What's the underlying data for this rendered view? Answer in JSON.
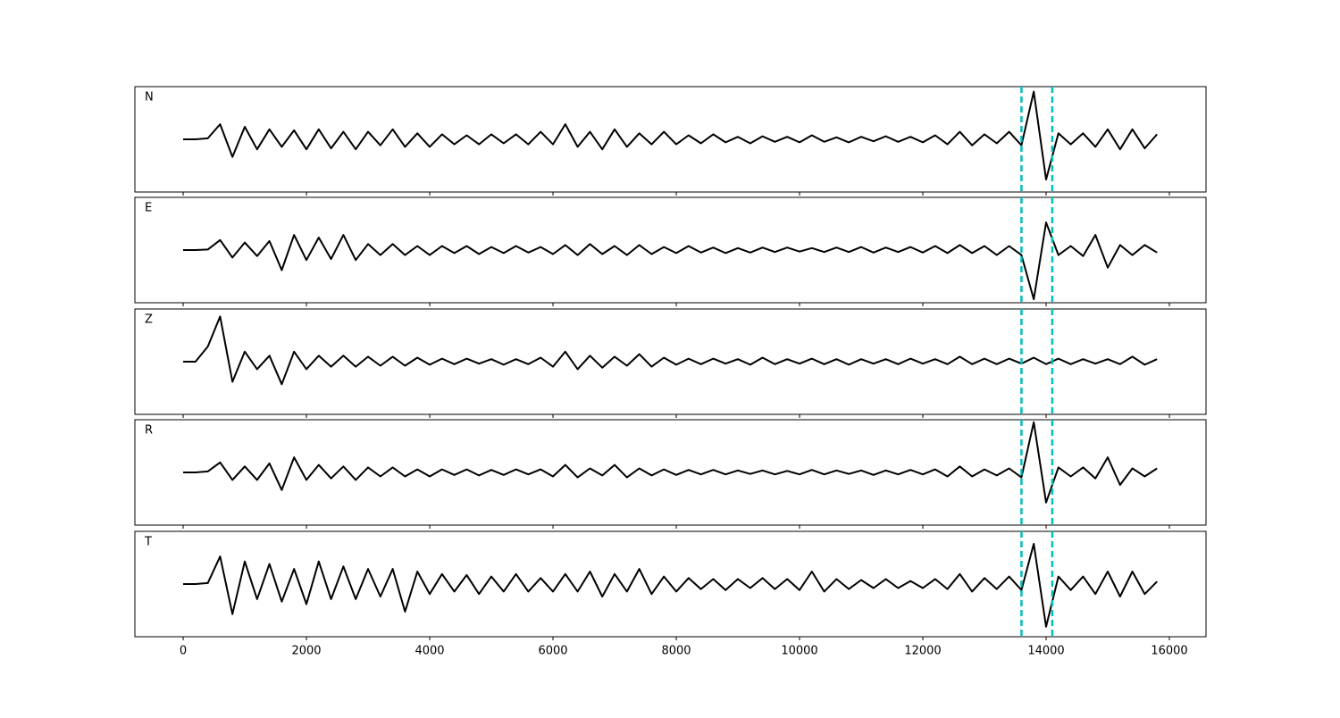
{
  "chart_data": {
    "type": "line",
    "subplots": true,
    "x": [
      0,
      200,
      400,
      600,
      800,
      1000,
      1200,
      1400,
      1600,
      1800,
      2000,
      2200,
      2400,
      2600,
      2800,
      3000,
      3200,
      3400,
      3600,
      3800,
      4000,
      4200,
      4400,
      4600,
      4800,
      5000,
      5200,
      5400,
      5600,
      5800,
      6000,
      6200,
      6400,
      6600,
      6800,
      7000,
      7200,
      7400,
      7600,
      7800,
      8000,
      8200,
      8400,
      8600,
      8800,
      9000,
      9200,
      9400,
      9600,
      9800,
      10000,
      10200,
      10400,
      10600,
      10800,
      11000,
      11200,
      11400,
      11600,
      11800,
      12000,
      12200,
      12400,
      12600,
      12800,
      13000,
      13200,
      13400,
      13600,
      13800,
      14000,
      14200,
      14400,
      14600,
      14800,
      15000,
      15200,
      15400,
      15600,
      15800
    ],
    "series": [
      {
        "name": "N",
        "color": "#000000",
        "values": [
          0,
          0,
          0.02,
          0.3,
          -0.35,
          0.25,
          -0.2,
          0.2,
          -0.15,
          0.18,
          -0.2,
          0.2,
          -0.18,
          0.15,
          -0.2,
          0.15,
          -0.12,
          0.2,
          -0.15,
          0.12,
          -0.15,
          0.1,
          -0.1,
          0.08,
          -0.1,
          0.1,
          -0.08,
          0.1,
          -0.1,
          0.15,
          -0.1,
          0.3,
          -0.15,
          0.15,
          -0.2,
          0.2,
          -0.15,
          0.12,
          -0.1,
          0.15,
          -0.1,
          0.08,
          -0.08,
          0.1,
          -0.06,
          0.05,
          -0.08,
          0.06,
          -0.05,
          0.05,
          -0.06,
          0.08,
          -0.05,
          0.04,
          -0.06,
          0.05,
          -0.04,
          0.06,
          -0.05,
          0.05,
          -0.06,
          0.08,
          -0.1,
          0.15,
          -0.12,
          0.1,
          -0.08,
          0.15,
          -0.12,
          0.95,
          -0.8,
          0.12,
          -0.1,
          0.12,
          -0.15,
          0.2,
          -0.2,
          0.2,
          -0.18,
          0.1
        ]
      },
      {
        "name": "E",
        "color": "#000000",
        "values": [
          0,
          0,
          0.01,
          0.2,
          -0.15,
          0.15,
          -0.12,
          0.18,
          -0.4,
          0.3,
          -0.2,
          0.25,
          -0.18,
          0.3,
          -0.2,
          0.12,
          -0.1,
          0.12,
          -0.1,
          0.08,
          -0.1,
          0.08,
          -0.06,
          0.08,
          -0.08,
          0.06,
          -0.06,
          0.08,
          -0.05,
          0.06,
          -0.08,
          0.1,
          -0.1,
          0.12,
          -0.08,
          0.08,
          -0.1,
          0.1,
          -0.08,
          0.06,
          -0.06,
          0.08,
          -0.05,
          0.05,
          -0.06,
          0.04,
          -0.05,
          0.05,
          -0.04,
          0.05,
          -0.03,
          0.04,
          -0.04,
          0.05,
          -0.04,
          0.06,
          -0.05,
          0.05,
          -0.04,
          0.06,
          -0.05,
          0.08,
          -0.06,
          0.1,
          -0.06,
          0.08,
          -0.1,
          0.08,
          -0.1,
          -0.98,
          0.55,
          -0.1,
          0.08,
          -0.12,
          0.3,
          -0.35,
          0.1,
          -0.1,
          0.1,
          -0.05
        ]
      },
      {
        "name": "Z",
        "color": "#000000",
        "values": [
          0,
          0,
          0.3,
          0.9,
          -0.4,
          0.2,
          -0.15,
          0.12,
          -0.45,
          0.2,
          -0.15,
          0.12,
          -0.1,
          0.12,
          -0.1,
          0.1,
          -0.08,
          0.1,
          -0.08,
          0.08,
          -0.06,
          0.06,
          -0.05,
          0.06,
          -0.04,
          0.05,
          -0.06,
          0.05,
          -0.05,
          0.08,
          -0.1,
          0.2,
          -0.15,
          0.12,
          -0.12,
          0.1,
          -0.08,
          0.15,
          -0.1,
          0.08,
          -0.06,
          0.06,
          -0.05,
          0.06,
          -0.04,
          0.05,
          -0.06,
          0.08,
          -0.05,
          0.05,
          -0.04,
          0.06,
          -0.05,
          0.05,
          -0.06,
          0.05,
          -0.04,
          0.05,
          -0.05,
          0.06,
          -0.04,
          0.05,
          -0.05,
          0.1,
          -0.05,
          0.06,
          -0.05,
          0.06,
          -0.04,
          0.08,
          -0.05,
          0.06,
          -0.05,
          0.05,
          -0.04,
          0.05,
          -0.05,
          0.1,
          -0.06,
          0.05
        ]
      },
      {
        "name": "R",
        "color": "#000000",
        "values": [
          0,
          0,
          0.02,
          0.2,
          -0.15,
          0.12,
          -0.15,
          0.18,
          -0.35,
          0.3,
          -0.15,
          0.15,
          -0.12,
          0.12,
          -0.15,
          0.1,
          -0.08,
          0.1,
          -0.08,
          0.06,
          -0.08,
          0.06,
          -0.05,
          0.06,
          -0.06,
          0.05,
          -0.05,
          0.06,
          -0.04,
          0.06,
          -0.08,
          0.15,
          -0.1,
          0.08,
          -0.06,
          0.15,
          -0.1,
          0.08,
          -0.06,
          0.06,
          -0.05,
          0.05,
          -0.04,
          0.05,
          -0.04,
          0.04,
          -0.03,
          0.04,
          -0.04,
          0.03,
          -0.04,
          0.05,
          -0.04,
          0.04,
          -0.03,
          0.04,
          -0.05,
          0.04,
          -0.04,
          0.05,
          -0.04,
          0.06,
          -0.08,
          0.12,
          -0.08,
          0.06,
          -0.06,
          0.08,
          -0.1,
          1.0,
          -0.6,
          0.1,
          -0.08,
          0.1,
          -0.12,
          0.3,
          -0.25,
          0.08,
          -0.08,
          0.08
        ]
      },
      {
        "name": "T",
        "color": "#000000",
        "values": [
          0,
          0,
          0.02,
          0.55,
          -0.6,
          0.45,
          -0.3,
          0.4,
          -0.35,
          0.3,
          -0.4,
          0.45,
          -0.3,
          0.35,
          -0.3,
          0.3,
          -0.25,
          0.3,
          -0.55,
          0.25,
          -0.2,
          0.2,
          -0.15,
          0.18,
          -0.2,
          0.15,
          -0.15,
          0.2,
          -0.15,
          0.12,
          -0.15,
          0.2,
          -0.15,
          0.25,
          -0.25,
          0.2,
          -0.15,
          0.3,
          -0.2,
          0.15,
          -0.15,
          0.12,
          -0.1,
          0.1,
          -0.12,
          0.1,
          -0.08,
          0.12,
          -0.1,
          0.1,
          -0.12,
          0.25,
          -0.15,
          0.1,
          -0.1,
          0.08,
          -0.08,
          0.1,
          -0.08,
          0.06,
          -0.08,
          0.1,
          -0.1,
          0.2,
          -0.15,
          0.12,
          -0.1,
          0.15,
          -0.12,
          0.8,
          -0.85,
          0.15,
          -0.12,
          0.15,
          -0.2,
          0.25,
          -0.25,
          0.25,
          -0.2,
          0.05
        ]
      }
    ],
    "xlim": [
      -783,
      16594
    ],
    "ylim": [
      -1.05,
      1.05
    ],
    "xticks": [
      0,
      2000,
      4000,
      6000,
      8000,
      10000,
      12000,
      14000,
      16000
    ],
    "vlines": [
      13600,
      14100
    ],
    "vline_color": "#00bfbf"
  }
}
